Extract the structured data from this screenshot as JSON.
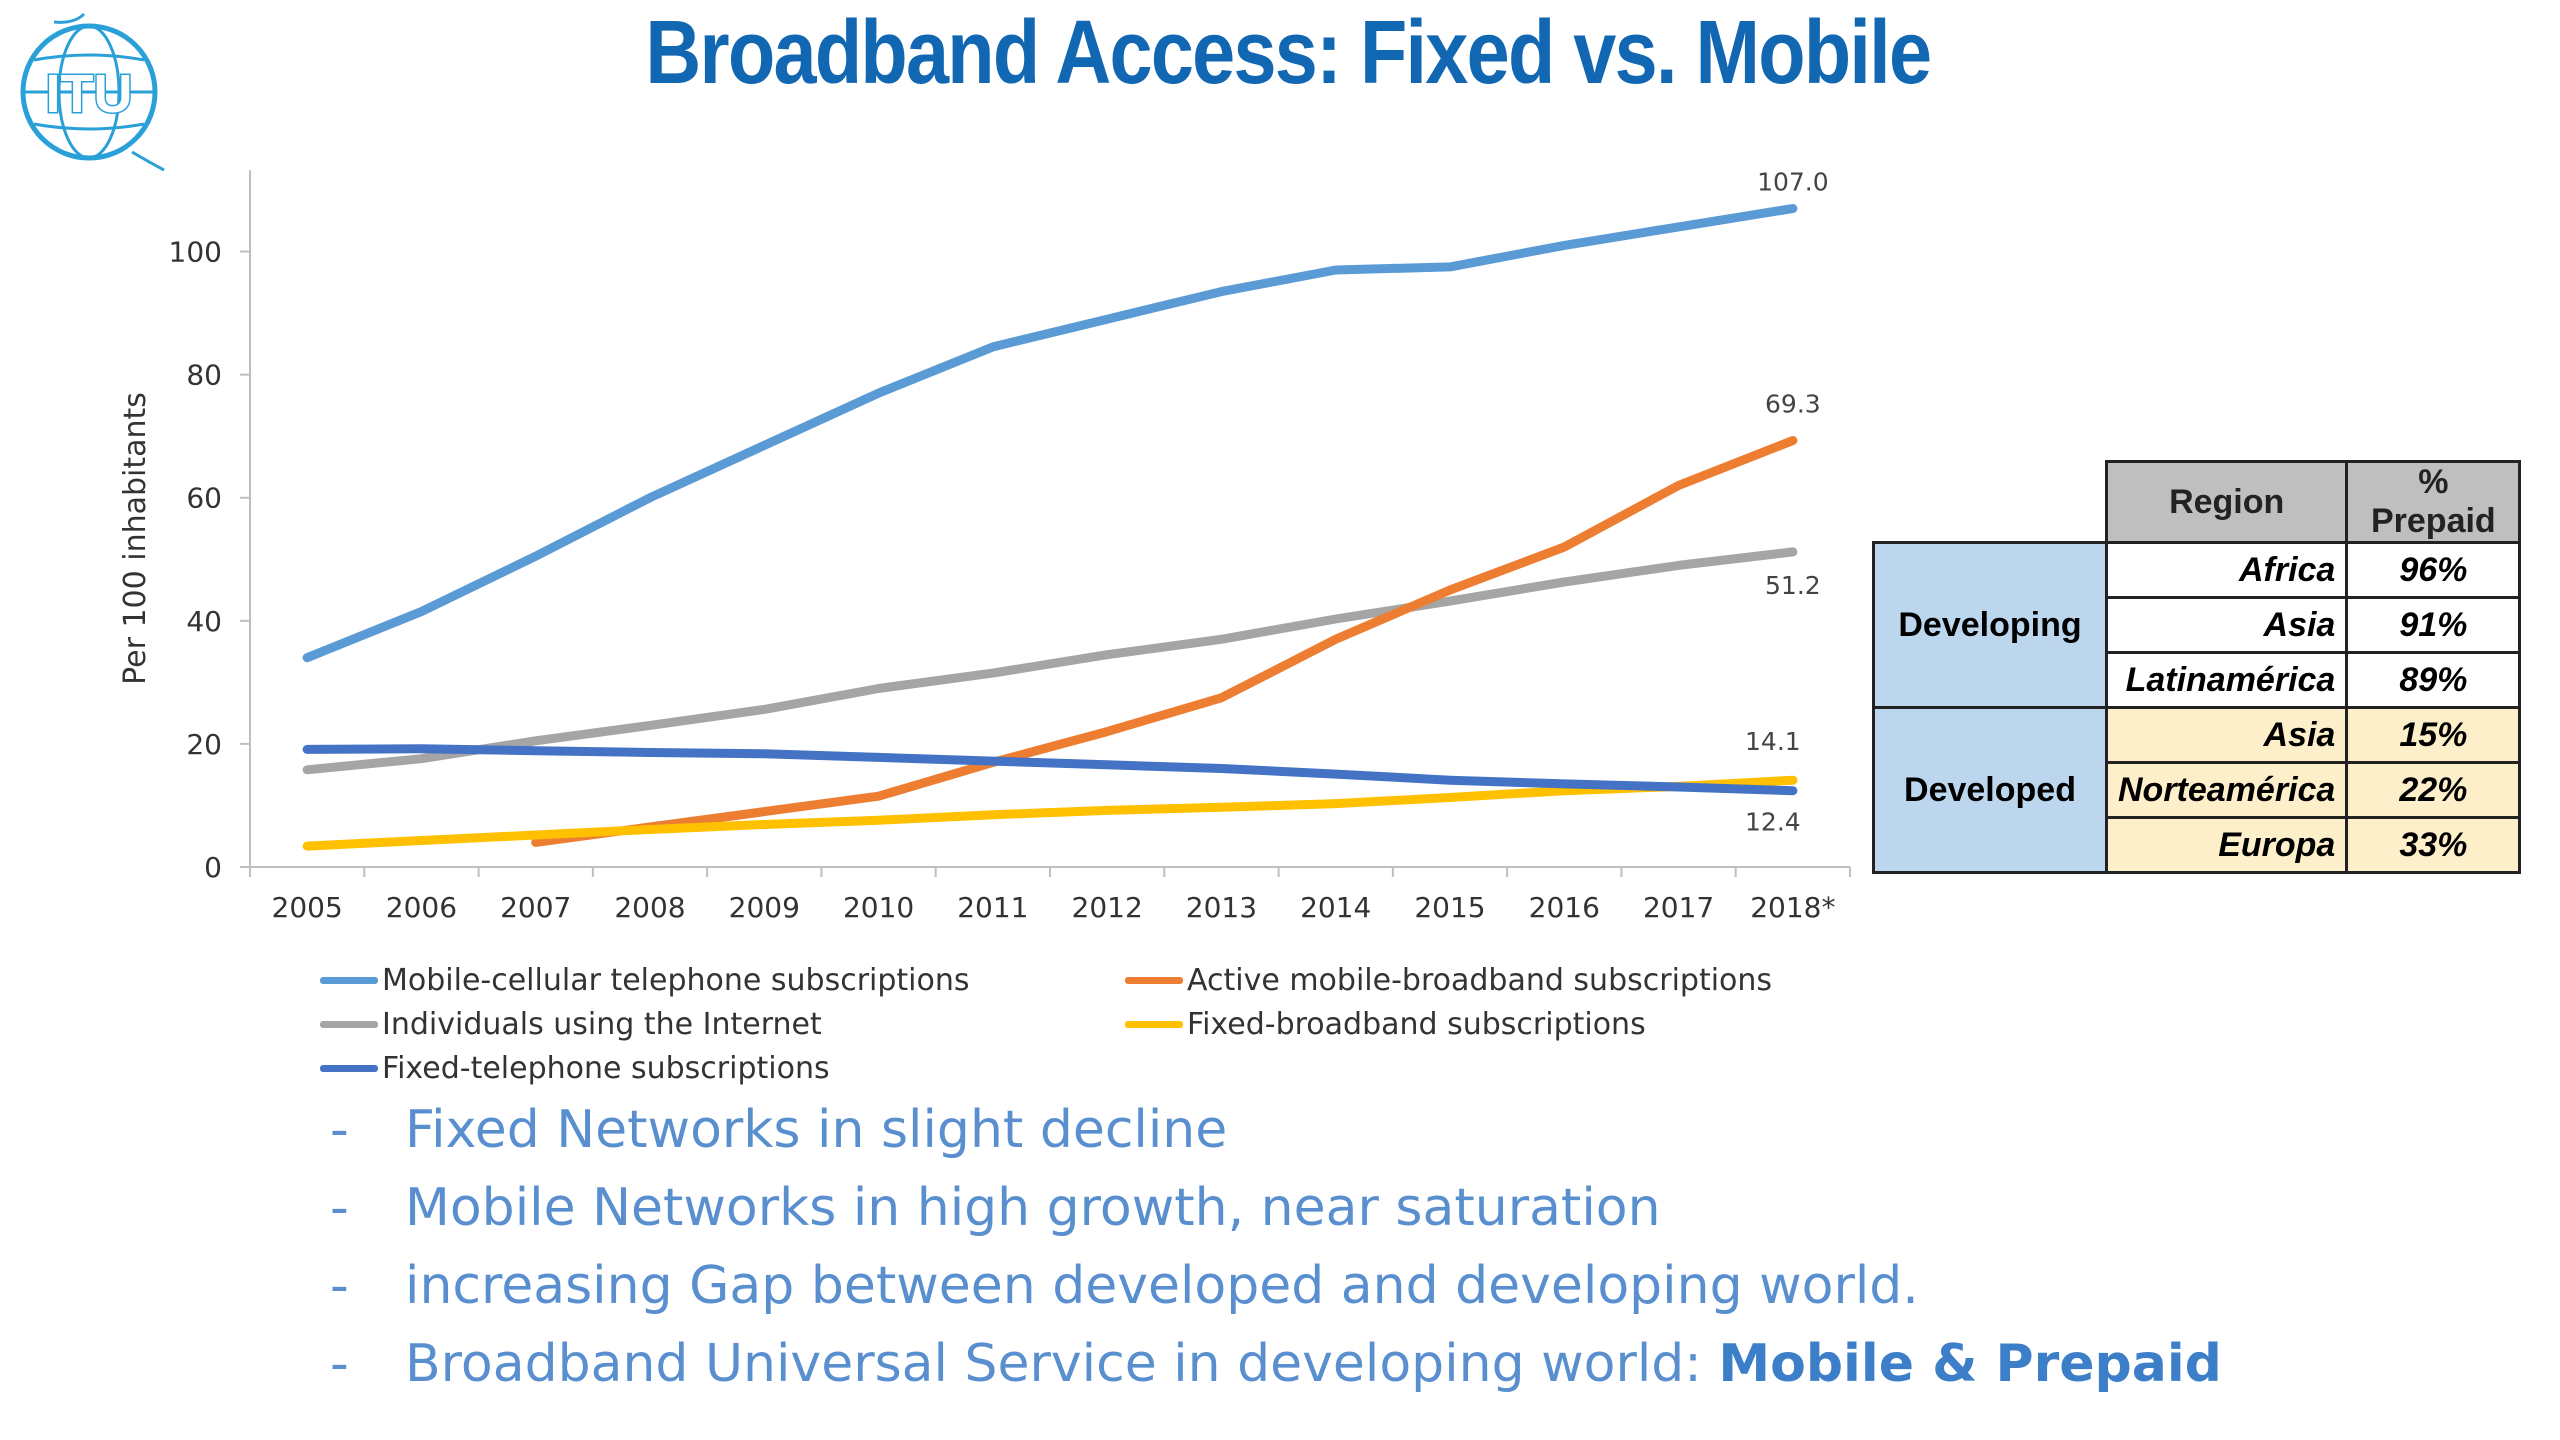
{
  "title": "Broadband Access: Fixed vs. Mobile",
  "logo": {
    "text": "ITU"
  },
  "colors": {
    "title": "#1167b1",
    "mobile_cellular": "#5b9bd5",
    "mobile_broadband": "#ed7d31",
    "internet": "#a5a5a5",
    "fixed_broadband": "#ffc000",
    "fixed_telephone": "#4472c4"
  },
  "chart_data": {
    "type": "line",
    "ylabel": "Per 100 inhabitants",
    "xlabel": "",
    "ylim": [
      0,
      110
    ],
    "yticks": [
      "0",
      "20",
      "40",
      "60",
      "80",
      "100"
    ],
    "categories": [
      "2005",
      "2006",
      "2007",
      "2008",
      "2009",
      "2010",
      "2011",
      "2012",
      "2013",
      "2014",
      "2015",
      "2016",
      "2017",
      "2018*"
    ],
    "grid": false,
    "legend_position": "bottom",
    "series": [
      {
        "name": "Mobile-cellular telephone subscriptions",
        "color": "#5b9bd5",
        "values": [
          34,
          41.5,
          50.5,
          60,
          68.5,
          77,
          84.5,
          89,
          93.5,
          97,
          97.5,
          101,
          104,
          107.0
        ],
        "end_label": "107.0"
      },
      {
        "name": "Active mobile-broadband subscriptions",
        "color": "#ed7d31",
        "values": [
          null,
          null,
          4,
          6.5,
          9,
          11.5,
          17,
          22,
          27.5,
          37,
          45,
          52,
          62,
          69.3
        ],
        "end_label": "69.3"
      },
      {
        "name": "Individuals using the Internet",
        "color": "#a5a5a5",
        "values": [
          15.8,
          17.6,
          20.5,
          23,
          25.6,
          29,
          31.5,
          34.5,
          37,
          40.3,
          43.2,
          46.3,
          49,
          51.2
        ],
        "end_label": "51.2"
      },
      {
        "name": "Fixed-broadband subscriptions",
        "color": "#ffc000",
        "values": [
          3.4,
          4.3,
          5.2,
          6.1,
          6.9,
          7.6,
          8.5,
          9.2,
          9.7,
          10.3,
          11.3,
          12.4,
          13.1,
          14.1
        ],
        "end_label": "14.1"
      },
      {
        "name": "Fixed-telephone subscriptions",
        "color": "#4472c4",
        "values": [
          19.1,
          19.2,
          18.9,
          18.6,
          18.4,
          17.8,
          17.2,
          16.6,
          16,
          15.1,
          14.1,
          13.5,
          13,
          12.4
        ],
        "end_label": "12.4"
      }
    ]
  },
  "prepaid_table": {
    "headers": {
      "region": "Region",
      "prepaid": "% Prepaid"
    },
    "groups": [
      {
        "name": "Developing",
        "rows": [
          {
            "region": "Africa",
            "prepaid": "96%"
          },
          {
            "region": "Asia",
            "prepaid": "91%"
          },
          {
            "region": "Latinamérica",
            "prepaid": "89%"
          }
        ]
      },
      {
        "name": "Developed",
        "rows": [
          {
            "region": "Asia",
            "prepaid": "15%"
          },
          {
            "region": "Norteamérica",
            "prepaid": "22%"
          },
          {
            "region": "Europa",
            "prepaid": "33%"
          }
        ]
      }
    ]
  },
  "bullets": [
    {
      "dash": "-",
      "text": "Fixed Networks in slight decline",
      "strong": ""
    },
    {
      "dash": "-",
      "text": "Mobile Networks in high growth, near saturation",
      "strong": ""
    },
    {
      "dash": "-",
      "text": "increasing Gap between developed and developing world.",
      "strong": ""
    },
    {
      "dash": "-",
      "text": "Broadband Universal Service in developing world: ",
      "strong": "Mobile & Prepaid"
    }
  ]
}
